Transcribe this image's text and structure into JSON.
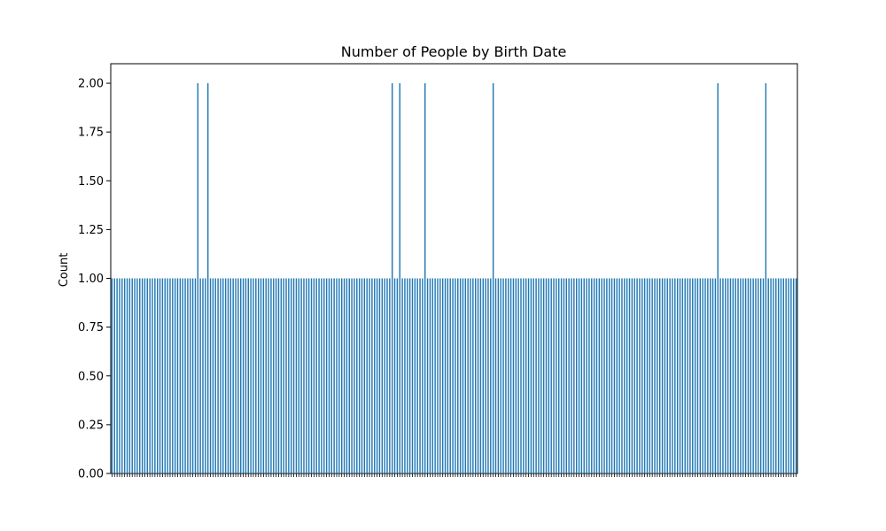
{
  "chart_data": {
    "type": "bar",
    "title": "Number of People by Birth Date",
    "xlabel": "",
    "ylabel": "Count",
    "ylim": [
      0,
      2.1
    ],
    "grid": false,
    "y_ticks": [
      0.0,
      0.25,
      0.5,
      0.75,
      1.0,
      1.25,
      1.5,
      1.75,
      2.0
    ],
    "y_tick_labels": [
      "0.00",
      "0.25",
      "0.50",
      "0.75",
      "1.00",
      "1.25",
      "1.50",
      "1.75",
      "2.00"
    ],
    "category_count": 272,
    "values": [
      1,
      1,
      1,
      1,
      1,
      1,
      1,
      1,
      1,
      1,
      1,
      1,
      1,
      1,
      1,
      1,
      1,
      1,
      1,
      1,
      1,
      1,
      1,
      1,
      1,
      1,
      1,
      1,
      1,
      1,
      1,
      1,
      1,
      1,
      2,
      1,
      1,
      1,
      2,
      1,
      1,
      1,
      1,
      1,
      1,
      1,
      1,
      1,
      1,
      1,
      1,
      1,
      1,
      1,
      1,
      1,
      1,
      1,
      1,
      1,
      1,
      1,
      1,
      1,
      1,
      1,
      1,
      1,
      1,
      1,
      1,
      1,
      1,
      1,
      1,
      1,
      1,
      1,
      1,
      1,
      1,
      1,
      1,
      1,
      1,
      1,
      1,
      1,
      1,
      1,
      1,
      1,
      1,
      1,
      1,
      1,
      1,
      1,
      1,
      1,
      1,
      1,
      1,
      1,
      1,
      1,
      1,
      1,
      1,
      1,
      1,
      2,
      1,
      1,
      2,
      1,
      1,
      1,
      1,
      1,
      1,
      1,
      1,
      1,
      2,
      1,
      1,
      1,
      1,
      1,
      1,
      1,
      1,
      1,
      1,
      1,
      1,
      1,
      1,
      1,
      1,
      1,
      1,
      1,
      1,
      1,
      1,
      1,
      1,
      1,
      1,
      2,
      1,
      1,
      1,
      1,
      1,
      1,
      1,
      1,
      1,
      1,
      1,
      1,
      1,
      1,
      1,
      1,
      1,
      1,
      1,
      1,
      1,
      1,
      1,
      1,
      1,
      1,
      1,
      1,
      1,
      1,
      1,
      1,
      1,
      1,
      1,
      1,
      1,
      1,
      1,
      1,
      1,
      1,
      1,
      1,
      1,
      1,
      1,
      1,
      1,
      1,
      1,
      1,
      1,
      1,
      1,
      1,
      1,
      1,
      1,
      1,
      1,
      1,
      1,
      1,
      1,
      1,
      1,
      1,
      1,
      1,
      1,
      1,
      1,
      1,
      1,
      1,
      1,
      1,
      1,
      1,
      1,
      1,
      1,
      1,
      1,
      1,
      1,
      1,
      2,
      1,
      1,
      1,
      1,
      1,
      1,
      1,
      1,
      1,
      1,
      1,
      1,
      1,
      1,
      1,
      1,
      1,
      1,
      2,
      1,
      1,
      1,
      1,
      1,
      1,
      1,
      1,
      1,
      1,
      1,
      1
    ],
    "series_color": "#1f77b4"
  }
}
